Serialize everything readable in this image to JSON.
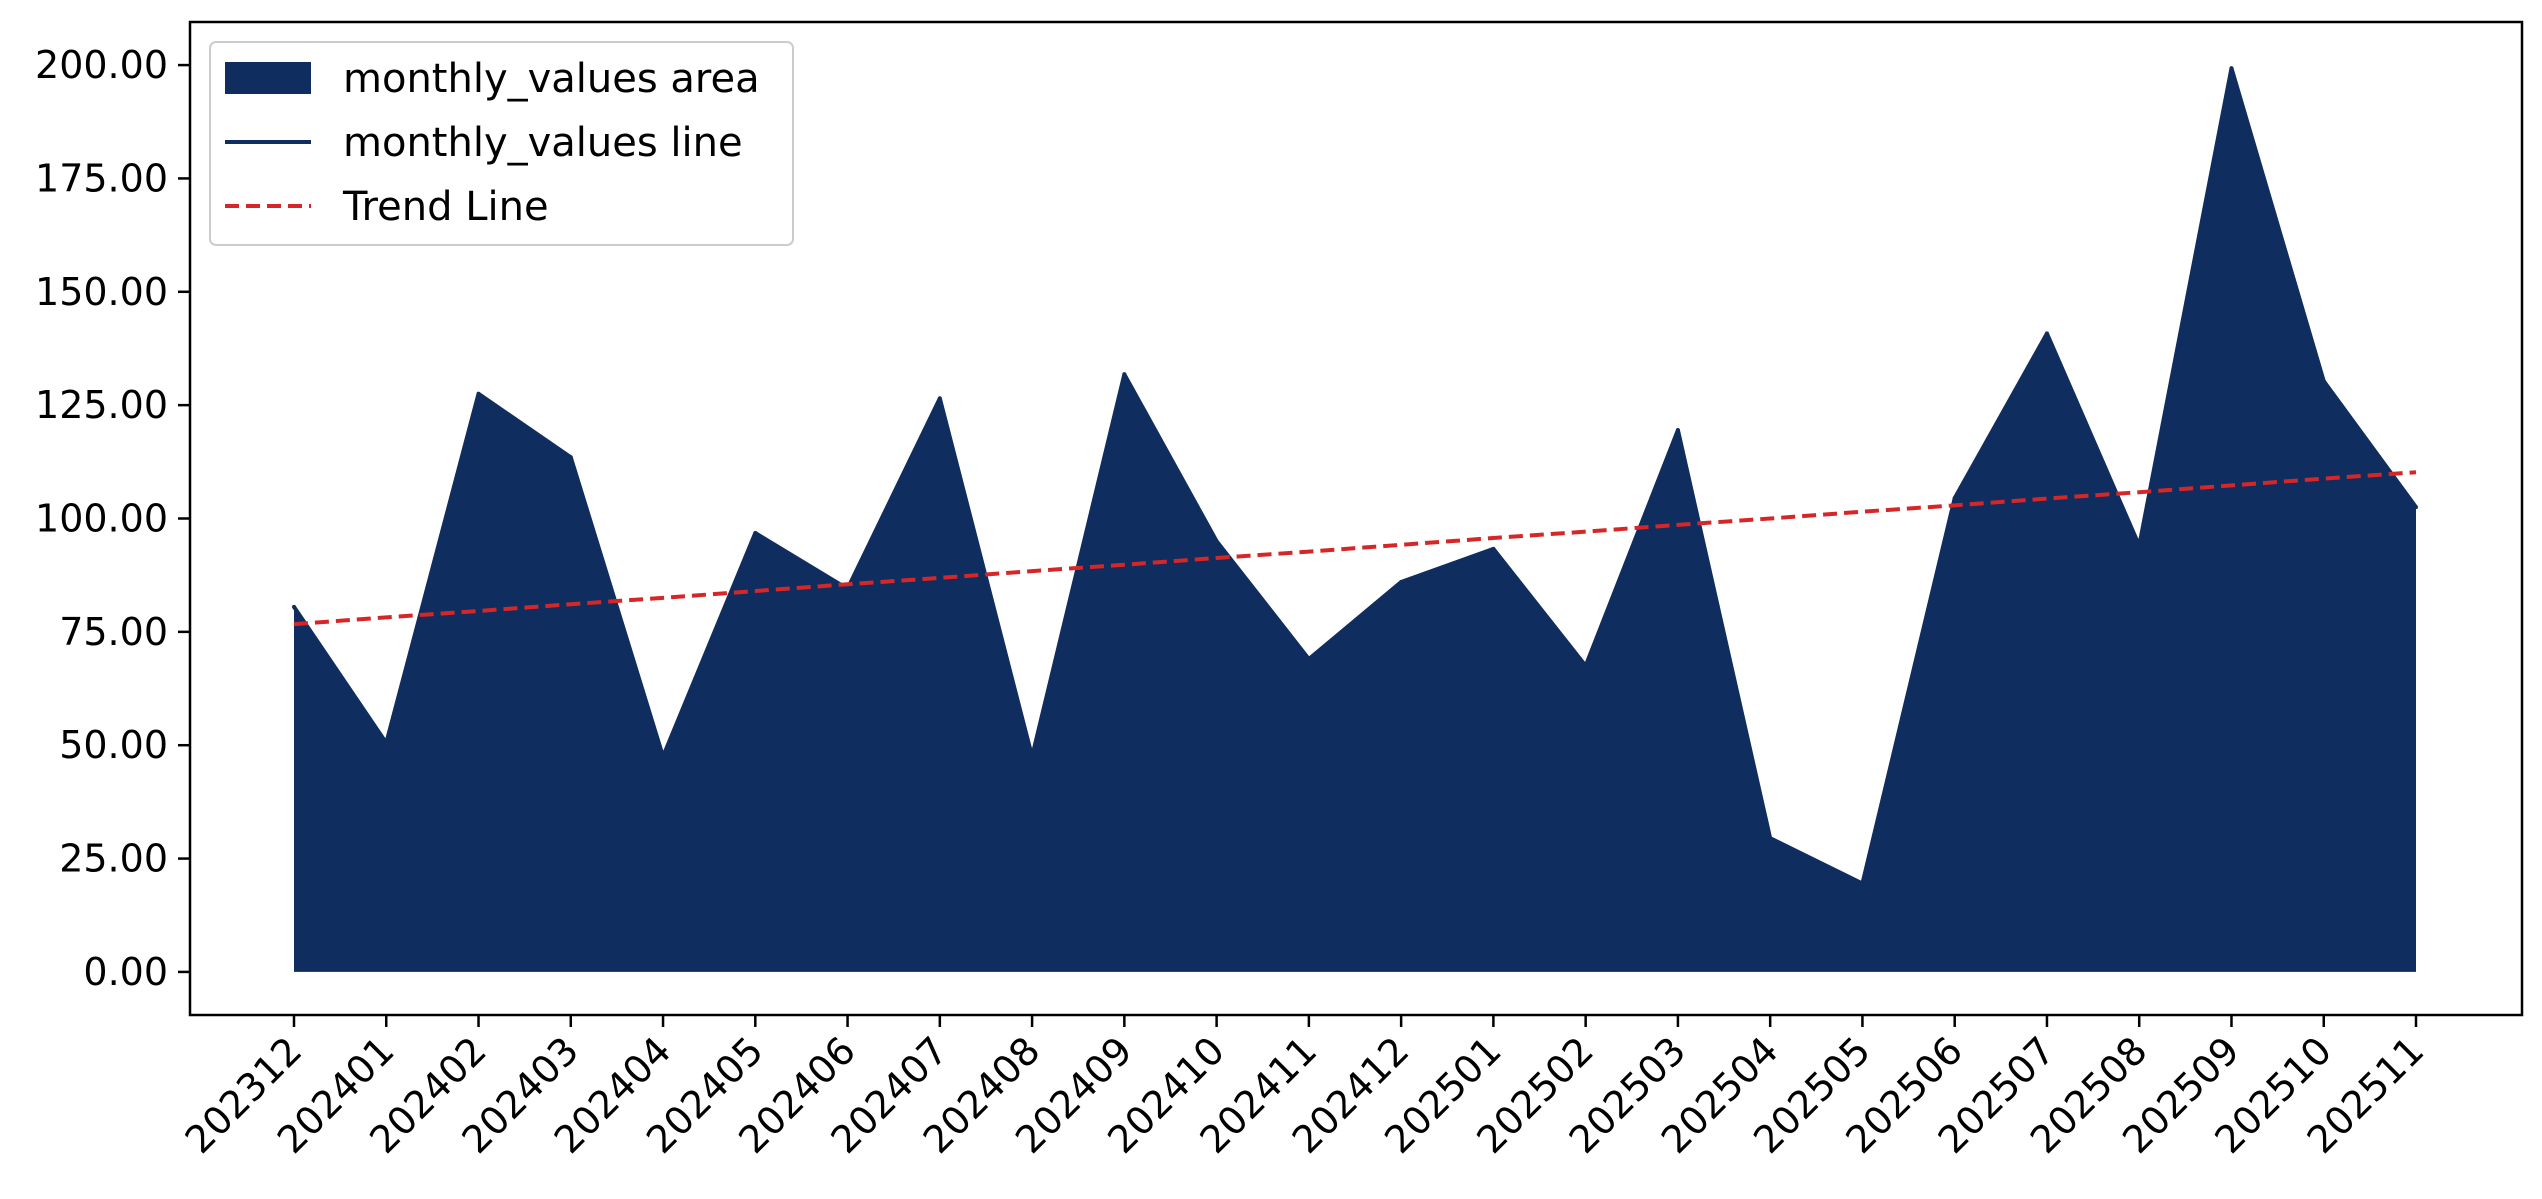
{
  "chart_data": {
    "type": "area",
    "title": "",
    "xlabel": "",
    "ylabel": "",
    "categories": [
      "202312",
      "202401",
      "202402",
      "202403",
      "202404",
      "202405",
      "202406",
      "202407",
      "202408",
      "202409",
      "202410",
      "202411",
      "202412",
      "202501",
      "202502",
      "202503",
      "202504",
      "202505",
      "202506",
      "202507",
      "202508",
      "202509",
      "202510",
      "202511"
    ],
    "series": [
      {
        "name": "monthly_values area",
        "kind": "area",
        "color": "#0f2d5e",
        "values": [
          80.5,
          50.5,
          127.5,
          113.5,
          47.5,
          96.8,
          84.5,
          126.5,
          47.5,
          131.8,
          95.0,
          69.0,
          86.0,
          93.3,
          67.5,
          119.5,
          29.5,
          19.5,
          104.5,
          140.8,
          94.0,
          199.3,
          130.3,
          102.5
        ]
      },
      {
        "name": "monthly_values line",
        "kind": "line",
        "color": "#0f2d5e",
        "values": [
          80.5,
          50.5,
          127.5,
          113.5,
          47.5,
          96.8,
          84.5,
          126.5,
          47.5,
          131.8,
          95.0,
          69.0,
          86.0,
          93.3,
          67.5,
          119.5,
          29.5,
          19.5,
          104.5,
          140.8,
          94.0,
          199.3,
          130.3,
          102.5
        ]
      },
      {
        "name": "Trend Line",
        "kind": "line",
        "style": "dashed",
        "color": "#d62728",
        "values": [
          76.7,
          78.2,
          79.6,
          81.1,
          82.5,
          84.0,
          85.5,
          86.9,
          88.4,
          89.8,
          91.3,
          92.7,
          94.2,
          95.7,
          97.1,
          98.6,
          100.0,
          101.5,
          102.9,
          104.4,
          105.8,
          107.3,
          108.8,
          110.2
        ]
      }
    ],
    "yticks": [
      "0.00",
      "25.00",
      "50.00",
      "75.00",
      "100.00",
      "125.00",
      "150.00",
      "175.00",
      "200.00"
    ],
    "ylim": [
      -9.5,
      209.5
    ],
    "grid": false,
    "legend_position": "top-left"
  }
}
